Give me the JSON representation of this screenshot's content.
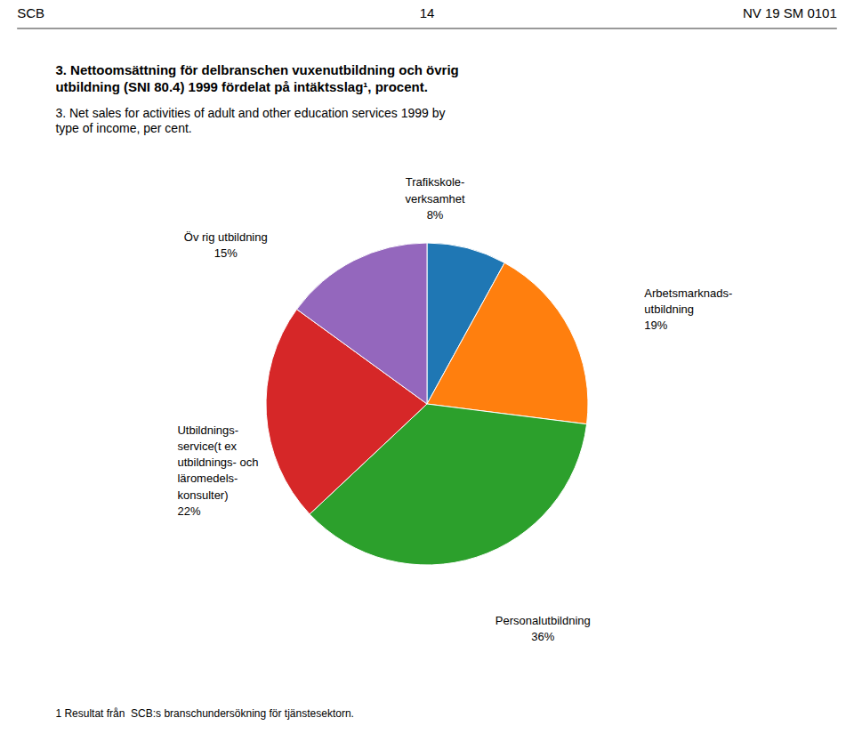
{
  "chart_data": {
    "type": "pie",
    "title": [
      "3. Nettoomsättning för delbranschen vuxenutbildning och övrig",
      "utbildning (SNI 80.4) 1999 fördelat på intäktsslag¹, procent."
    ],
    "subtitle": [
      "3. Net sales for activities of adult and other education services 1999 by",
      "type of income, per cent."
    ],
    "annotations": [
      "SCB",
      "14",
      "NV 19 SM 0101",
      "1 Resultat från  SCB:s branschundersökning för tjänstesektorn."
    ],
    "categories": [
      [
        "Trafikskole-",
        "verksamhet"
      ],
      [
        "Arbetsmarknads-",
        "utbildning"
      ],
      [
        "Personalutbildning"
      ],
      [
        "Utbildnings-",
        "service(t ex",
        "utbildnings- och",
        "läromedels-",
        "konsulter)"
      ],
      [
        "Öv rig utbildning"
      ]
    ],
    "values": [
      8,
      19,
      36,
      22,
      15
    ],
    "value_labels": [
      "8%",
      "19%",
      "36%",
      "22%",
      "15%"
    ],
    "data_labels": true
  }
}
